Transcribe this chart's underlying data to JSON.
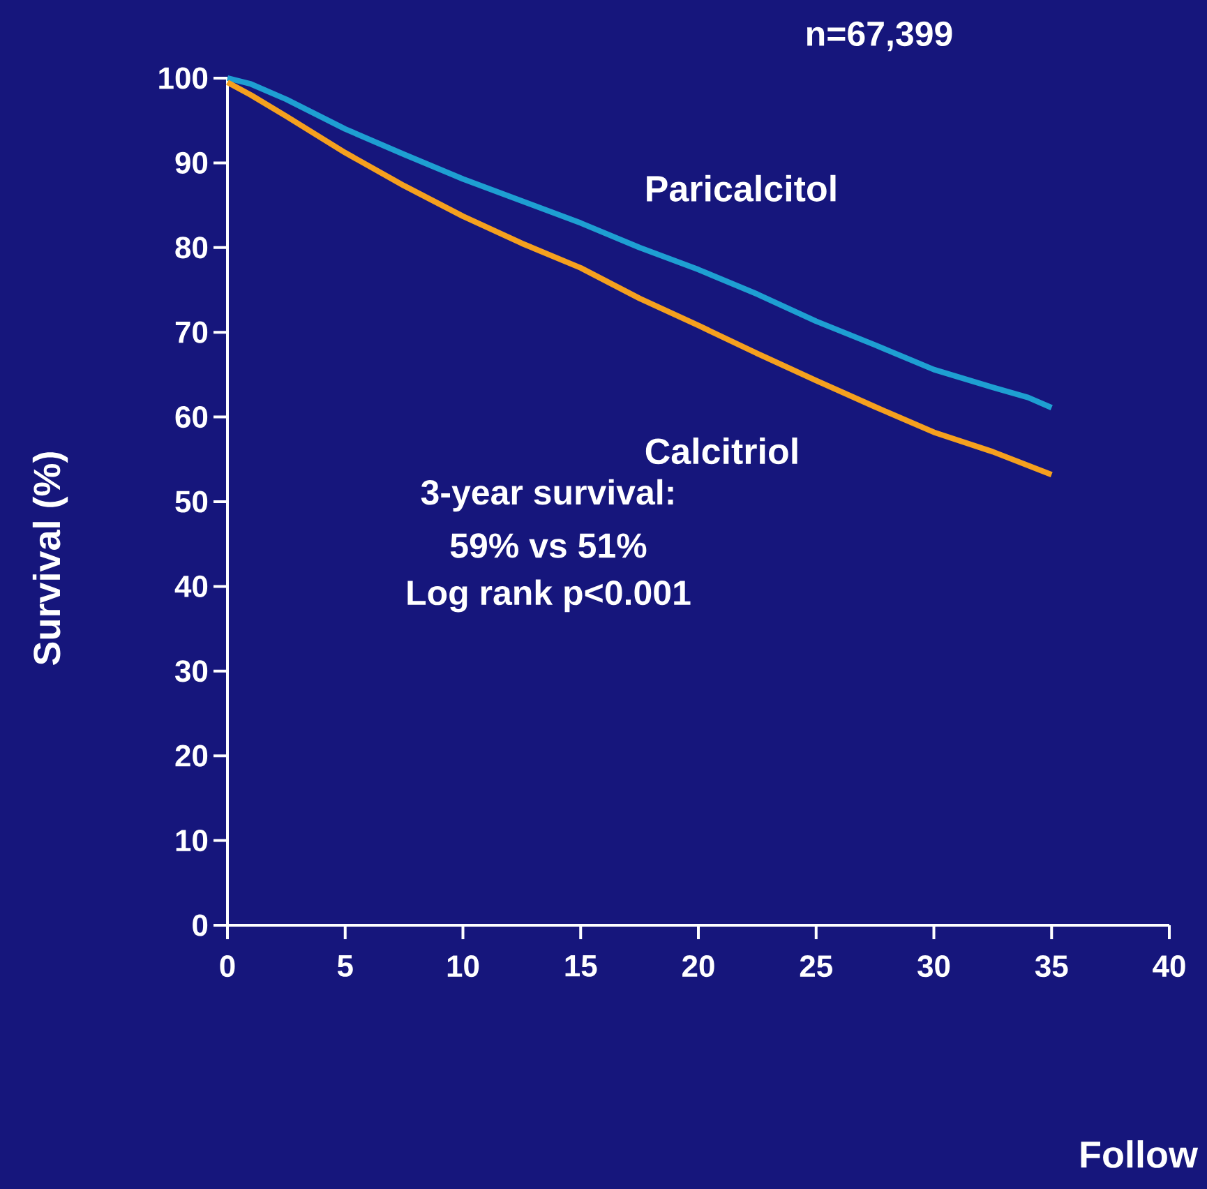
{
  "chart_data": {
    "type": "line",
    "xlabel": "Follow",
    "ylabel": "Survival (%)",
    "annotations": [
      "n=67,399",
      "3-year survival:",
      "59% vs 51%",
      "Log rank p<0.001"
    ],
    "xlim": [
      0,
      40
    ],
    "xticks": [
      0,
      5,
      10,
      15,
      20,
      25,
      30,
      35,
      40
    ],
    "ylim": [
      0,
      100
    ],
    "yticks": [
      0,
      10,
      20,
      30,
      40,
      50,
      60,
      70,
      80,
      90,
      100
    ],
    "grid": false,
    "legend": false,
    "marker": "none",
    "line_style": "solid",
    "series": [
      {
        "name": "Paricalcitol",
        "color": "#1e9fd2",
        "x": [
          0,
          1,
          2.5,
          5,
          7.5,
          10,
          12.5,
          15,
          17.5,
          20,
          22.5,
          25,
          27.5,
          30,
          32.5,
          34,
          35
        ],
        "values": [
          100,
          99.3,
          97.5,
          94,
          91,
          88.1,
          85.5,
          82.9,
          80,
          77.4,
          74.5,
          71.3,
          68.5,
          65.6,
          63.5,
          62.3,
          61.1
        ]
      },
      {
        "name": "Calcitriol",
        "color": "#f5a01e",
        "x": [
          0,
          1,
          2.5,
          5,
          7.5,
          10,
          12.5,
          15,
          17.5,
          20,
          22.5,
          25,
          27.5,
          30,
          32.5,
          35
        ],
        "values": [
          99.5,
          98,
          95.5,
          91.2,
          87.3,
          83.7,
          80.5,
          77.6,
          74,
          70.8,
          67.5,
          64.3,
          61.2,
          58.2,
          55.9,
          53.2
        ]
      }
    ]
  }
}
